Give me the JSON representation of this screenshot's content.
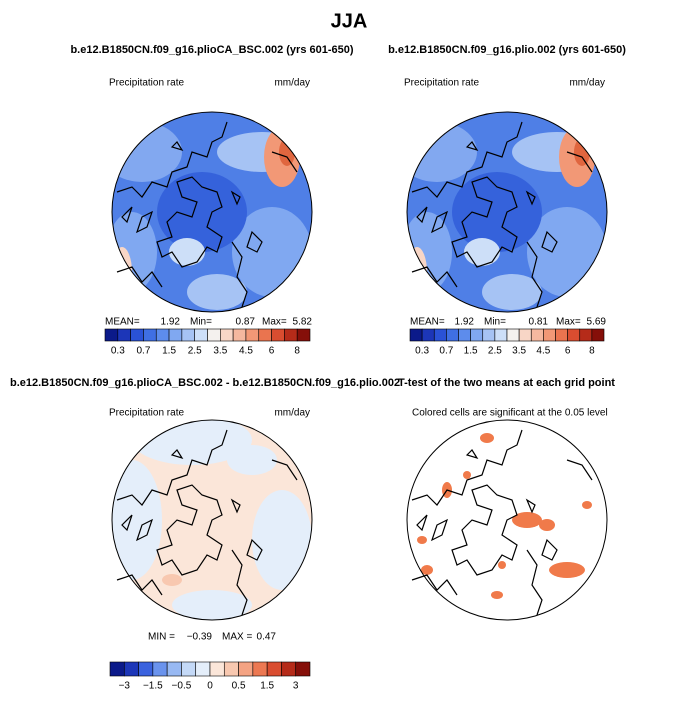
{
  "title": "JJA",
  "panels": [
    {
      "title": "b.e12.B1850CN.f09_g16.plioCA_BSC.002 (yrs 601-650)",
      "left_label": "Precipitation rate",
      "right_label": "mm/day",
      "stats": [
        "MEAN=",
        "1.92",
        "Min=",
        "0.87",
        "Max=",
        "5.82"
      ],
      "colorbar": {
        "colors": [
          "#0b1a8a",
          "#1c36b8",
          "#2a52d6",
          "#3f6fe3",
          "#5d8cec",
          "#80a8f1",
          "#a6c3f4",
          "#cddff8",
          "#f4f1ee",
          "#f8d6c6",
          "#f5b89f",
          "#f29876",
          "#ea744f",
          "#d94d30",
          "#b52b19",
          "#850f09"
        ],
        "labels": [
          "0.3",
          "0.7",
          "1.5",
          "2.5",
          "3.5",
          "4.5",
          "6",
          "8"
        ]
      }
    },
    {
      "title": "b.e12.B1850CN.f09_g16.plio.002 (yrs 601-650)",
      "left_label": "Precipitation rate",
      "right_label": "mm/day",
      "stats": [
        "MEAN=",
        "1.92",
        "Min=",
        "0.81",
        "Max=",
        "5.69"
      ],
      "colorbar": {
        "colors": [
          "#0b1a8a",
          "#1c36b8",
          "#2a52d6",
          "#3f6fe3",
          "#5d8cec",
          "#80a8f1",
          "#a6c3f4",
          "#cddff8",
          "#f4f1ee",
          "#f8d6c6",
          "#f5b89f",
          "#f29876",
          "#ea744f",
          "#d94d30",
          "#b52b19",
          "#850f09"
        ],
        "labels": [
          "0.3",
          "0.7",
          "1.5",
          "2.5",
          "3.5",
          "4.5",
          "6",
          "8"
        ]
      }
    },
    {
      "title": "b.e12.B1850CN.f09_g16.plioCA_BSC.002 - b.e12.B1850CN.f09_g16.plio.002",
      "left_label": "Precipitation rate",
      "right_label": "mm/day",
      "stats": [
        "MIN =",
        "−0.39",
        "MAX =",
        "0.47"
      ],
      "colorbar": {
        "colors": [
          "#0b1a8a",
          "#1c36b8",
          "#3a62de",
          "#6a93ed",
          "#98b9f3",
          "#c4d9f7",
          "#e4eefa",
          "#fbe6d9",
          "#f8c8b0",
          "#f4a383",
          "#ec7852",
          "#d94d30",
          "#b52b19",
          "#850f09"
        ],
        "labels": [
          "−3",
          "−1.5",
          "−0.5",
          "0",
          "0.5",
          "1.5",
          "3"
        ]
      }
    },
    {
      "title": "T-test of the two means at each grid point",
      "left_label": "Colored cells are significant at the 0.05 level"
    }
  ]
}
